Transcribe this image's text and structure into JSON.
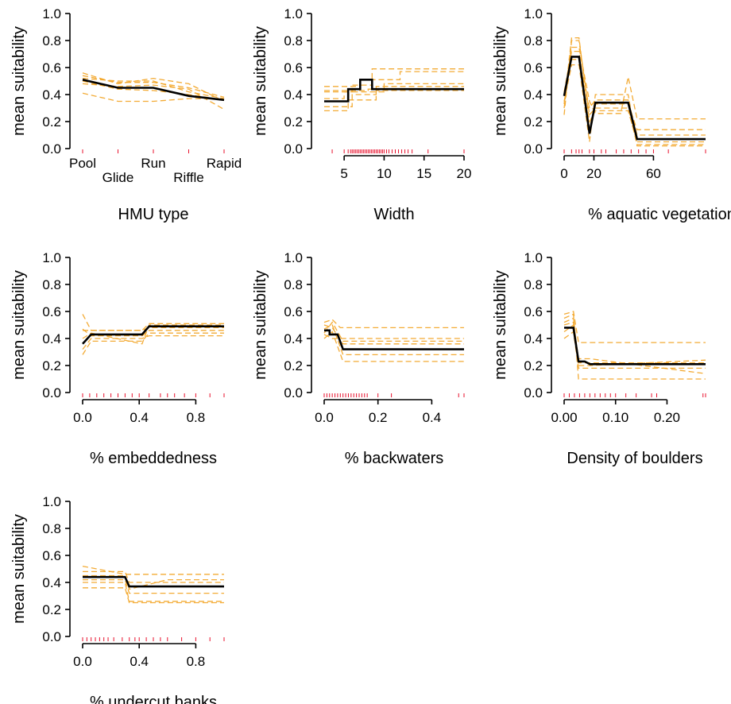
{
  "chart_data": [
    {
      "type": "line",
      "xlabel": "HMU type",
      "ylabel": "mean suitability",
      "ylim": [
        0,
        1
      ],
      "yticks": [
        "0.0",
        "0.2",
        "0.4",
        "0.6",
        "0.8",
        "1.0"
      ],
      "categorical": true,
      "categories": [
        "Pool",
        "Glide",
        "Run",
        "Riffle",
        "Rapid"
      ],
      "xlim": [
        1,
        5
      ],
      "mean": {
        "x": [
          1,
          2,
          3,
          4,
          5
        ],
        "y": [
          0.51,
          0.45,
          0.45,
          0.39,
          0.36
        ]
      },
      "ensemble": [
        [
          0.54,
          0.49,
          0.49,
          0.45,
          0.38
        ],
        [
          0.52,
          0.5,
          0.5,
          0.42,
          0.37
        ],
        [
          0.48,
          0.46,
          0.47,
          0.44,
          0.29
        ],
        [
          0.41,
          0.35,
          0.35,
          0.37,
          0.37
        ],
        [
          0.56,
          0.48,
          0.52,
          0.48,
          0.35
        ],
        [
          0.5,
          0.44,
          0.43,
          0.4,
          0.36
        ]
      ],
      "rug": [
        1,
        2,
        3,
        4,
        5
      ],
      "color_mean": "#000000",
      "color_ensemble": "#f2a62a",
      "color_rug": "#e8112d"
    },
    {
      "type": "line",
      "xlabel": "Width",
      "ylabel": "mean suitability",
      "ylim": [
        0,
        1
      ],
      "yticks": [
        "0.0",
        "0.2",
        "0.4",
        "0.6",
        "0.8",
        "1.0"
      ],
      "xlim": [
        2.5,
        20
      ],
      "xticks": [
        5,
        10,
        15,
        20
      ],
      "xtick_labels": [
        "5",
        "10",
        "15",
        "20"
      ],
      "mean": {
        "x": [
          2.5,
          5.5,
          5.5,
          7,
          7,
          8.5,
          8.5,
          20
        ],
        "y": [
          0.35,
          0.35,
          0.44,
          0.44,
          0.51,
          0.51,
          0.44,
          0.44
        ]
      },
      "ensemble": [
        {
          "x": [
            2.5,
            5.5,
            5.5,
            9,
            9,
            20
          ],
          "y": [
            0.28,
            0.28,
            0.36,
            0.36,
            0.43,
            0.43
          ]
        },
        {
          "x": [
            2.5,
            6,
            6,
            9,
            9,
            20
          ],
          "y": [
            0.31,
            0.31,
            0.4,
            0.4,
            0.46,
            0.46
          ]
        },
        {
          "x": [
            2.5,
            6,
            6,
            8.5,
            8.5,
            20
          ],
          "y": [
            0.42,
            0.42,
            0.47,
            0.47,
            0.59,
            0.59
          ]
        },
        {
          "x": [
            2.5,
            7,
            7,
            12,
            12,
            20
          ],
          "y": [
            0.46,
            0.46,
            0.51,
            0.51,
            0.57,
            0.57
          ]
        },
        {
          "x": [
            2.5,
            5,
            5,
            10,
            10,
            20
          ],
          "y": [
            0.37,
            0.37,
            0.42,
            0.42,
            0.48,
            0.48
          ]
        },
        {
          "x": [
            2.5,
            8,
            8,
            20
          ],
          "y": [
            0.43,
            0.43,
            0.44,
            0.44
          ]
        }
      ],
      "rug": [
        3.5,
        5.0,
        5.5,
        5.8,
        6.0,
        6.2,
        6.4,
        6.6,
        6.8,
        7.0,
        7.2,
        7.4,
        7.6,
        7.8,
        8.0,
        8.2,
        8.4,
        8.6,
        8.8,
        9.0,
        9.2,
        9.4,
        9.6,
        9.8,
        10.0,
        10.3,
        10.6,
        11.0,
        11.4,
        11.8,
        12.2,
        12.6,
        13.0,
        13.5,
        15.5,
        20
      ],
      "color_mean": "#000000",
      "color_ensemble": "#f2a62a",
      "color_rug": "#e8112d"
    },
    {
      "type": "line",
      "xlabel": "% aquatic vegetation",
      "ylabel": "mean suitability",
      "ylim": [
        0,
        1
      ],
      "yticks": [
        "0.0",
        "0.2",
        "0.4",
        "0.6",
        "0.8",
        "1.0"
      ],
      "xlim": [
        0,
        95
      ],
      "xticks": [
        0,
        20,
        60
      ],
      "xtick_labels": [
        "0",
        "20",
        "60"
      ],
      "mean": {
        "x": [
          0,
          5,
          10,
          17,
          21,
          43,
          49,
          95
        ],
        "y": [
          0.39,
          0.68,
          0.68,
          0.11,
          0.34,
          0.34,
          0.07,
          0.07
        ]
      },
      "ensemble": [
        {
          "x": [
            0,
            5,
            10,
            17,
            21,
            43,
            49,
            95
          ],
          "y": [
            0.25,
            0.8,
            0.8,
            0.25,
            0.3,
            0.3,
            0.03,
            0.03
          ]
        },
        {
          "x": [
            0,
            5,
            10,
            17,
            21,
            38,
            43,
            49,
            95
          ],
          "y": [
            0.3,
            0.75,
            0.75,
            0.35,
            0.26,
            0.26,
            0.53,
            0.22,
            0.22
          ]
        },
        {
          "x": [
            0,
            5,
            10,
            17,
            21,
            43,
            49,
            95
          ],
          "y": [
            0.42,
            0.72,
            0.72,
            0.15,
            0.33,
            0.33,
            0.14,
            0.14
          ]
        },
        {
          "x": [
            0,
            5,
            10,
            17,
            21,
            43,
            49,
            95
          ],
          "y": [
            0.35,
            0.62,
            0.62,
            0.05,
            0.4,
            0.4,
            0.02,
            0.02
          ]
        },
        {
          "x": [
            0,
            5,
            10,
            17,
            21,
            43,
            49,
            95
          ],
          "y": [
            0.33,
            0.82,
            0.82,
            0.2,
            0.28,
            0.28,
            0.05,
            0.05
          ]
        },
        {
          "x": [
            0,
            5,
            10,
            17,
            21,
            43,
            49,
            95
          ],
          "y": [
            0.4,
            0.66,
            0.66,
            0.3,
            0.36,
            0.36,
            0.1,
            0.1
          ]
        }
      ],
      "rug": [
        0,
        5,
        8,
        10,
        12,
        17,
        20,
        25,
        28,
        35,
        40,
        45,
        50,
        55,
        60,
        70,
        95
      ],
      "color_mean": "#000000",
      "color_ensemble": "#f2a62a",
      "color_rug": "#e8112d"
    },
    {
      "type": "line",
      "xlabel": "% embeddedness",
      "ylabel": "mean suitability",
      "ylim": [
        0,
        1
      ],
      "yticks": [
        "0.0",
        "0.2",
        "0.4",
        "0.6",
        "0.8",
        "1.0"
      ],
      "xlim": [
        0,
        1
      ],
      "xticks": [
        0,
        0.4,
        0.8
      ],
      "xtick_labels": [
        "0.0",
        "0.4",
        "0.8"
      ],
      "mean": {
        "x": [
          0,
          0.06,
          0.42,
          0.47,
          1
        ],
        "y": [
          0.36,
          0.43,
          0.43,
          0.49,
          0.49
        ]
      },
      "ensemble": [
        {
          "x": [
            0,
            0.06,
            0.42,
            0.47,
            1
          ],
          "y": [
            0.58,
            0.46,
            0.46,
            0.51,
            0.51
          ]
        },
        {
          "x": [
            0,
            0.06,
            0.42,
            0.47,
            1
          ],
          "y": [
            0.28,
            0.38,
            0.38,
            0.44,
            0.44
          ]
        },
        {
          "x": [
            0,
            0.06,
            0.42,
            0.47,
            1
          ],
          "y": [
            0.32,
            0.4,
            0.4,
            0.42,
            0.42
          ]
        },
        {
          "x": [
            0,
            0.06,
            0.42,
            0.47,
            1
          ],
          "y": [
            0.46,
            0.46,
            0.46,
            0.48,
            0.48
          ]
        },
        {
          "x": [
            0,
            0.06,
            0.42,
            0.47,
            1
          ],
          "y": [
            0.4,
            0.44,
            0.36,
            0.5,
            0.5
          ]
        },
        {
          "x": [
            0,
            0.06,
            0.42,
            0.47,
            1
          ],
          "y": [
            0.47,
            0.42,
            0.42,
            0.46,
            0.46
          ]
        }
      ],
      "rug": [
        0,
        0.05,
        0.1,
        0.15,
        0.2,
        0.25,
        0.3,
        0.35,
        0.4,
        0.47,
        0.55,
        0.6,
        0.65,
        0.72,
        0.8,
        0.9,
        1.0
      ],
      "color_mean": "#000000",
      "color_ensemble": "#f2a62a",
      "color_rug": "#e8112d"
    },
    {
      "type": "line",
      "xlabel": "% backwaters",
      "ylabel": "mean suitability",
      "ylim": [
        0,
        1
      ],
      "yticks": [
        "0.0",
        "0.2",
        "0.4",
        "0.6",
        "0.8",
        "1.0"
      ],
      "xlim": [
        0,
        0.52
      ],
      "xticks": [
        0,
        0.2,
        0.4
      ],
      "xtick_labels": [
        "0.0",
        "0.2",
        "0.4"
      ],
      "mean": {
        "x": [
          0,
          0.02,
          0.02,
          0.05,
          0.07,
          0.52
        ],
        "y": [
          0.46,
          0.46,
          0.43,
          0.43,
          0.32,
          0.32
        ]
      },
      "ensemble": [
        {
          "x": [
            0,
            0.03,
            0.06,
            0.52
          ],
          "y": [
            0.52,
            0.54,
            0.48,
            0.48
          ]
        },
        {
          "x": [
            0,
            0.03,
            0.07,
            0.52
          ],
          "y": [
            0.4,
            0.45,
            0.23,
            0.23
          ]
        },
        {
          "x": [
            0,
            0.03,
            0.07,
            0.52
          ],
          "y": [
            0.5,
            0.48,
            0.36,
            0.36
          ]
        },
        {
          "x": [
            0,
            0.03,
            0.07,
            0.52
          ],
          "y": [
            0.43,
            0.4,
            0.4,
            0.4
          ]
        },
        {
          "x": [
            0,
            0.03,
            0.07,
            0.52
          ],
          "y": [
            0.47,
            0.5,
            0.28,
            0.28
          ]
        },
        {
          "x": [
            0,
            0.03,
            0.07,
            0.52
          ],
          "y": [
            0.44,
            0.52,
            0.38,
            0.38
          ]
        }
      ],
      "rug": [
        0.0,
        0.01,
        0.02,
        0.03,
        0.04,
        0.05,
        0.06,
        0.07,
        0.08,
        0.09,
        0.1,
        0.11,
        0.12,
        0.13,
        0.14,
        0.15,
        0.16,
        0.2,
        0.25,
        0.5,
        0.52
      ],
      "color_mean": "#000000",
      "color_ensemble": "#f2a62a",
      "color_rug": "#e8112d"
    },
    {
      "type": "line",
      "xlabel": "Density of boulders",
      "ylabel": "mean suitability",
      "ylim": [
        0,
        1
      ],
      "yticks": [
        "0.0",
        "0.2",
        "0.4",
        "0.6",
        "0.8",
        "1.0"
      ],
      "xlim": [
        0,
        0.275
      ],
      "xticks": [
        0,
        0.1,
        0.2
      ],
      "xtick_labels": [
        "0.00",
        "0.10",
        "0.20"
      ],
      "mean": {
        "x": [
          0,
          0.018,
          0.028,
          0.04,
          0.05,
          0.275
        ],
        "y": [
          0.48,
          0.48,
          0.23,
          0.23,
          0.21,
          0.21
        ]
      },
      "ensemble": [
        {
          "x": [
            0,
            0.018,
            0.028,
            0.04,
            0.275
          ],
          "y": [
            0.58,
            0.6,
            0.37,
            0.37,
            0.37
          ]
        },
        {
          "x": [
            0,
            0.018,
            0.028,
            0.05,
            0.275
          ],
          "y": [
            0.52,
            0.55,
            0.22,
            0.22,
            0.22
          ]
        },
        {
          "x": [
            0,
            0.018,
            0.028,
            0.05,
            0.275
          ],
          "y": [
            0.4,
            0.45,
            0.18,
            0.18,
            0.18
          ]
        },
        {
          "x": [
            0,
            0.018,
            0.028,
            0.05,
            0.275
          ],
          "y": [
            0.55,
            0.58,
            0.1,
            0.1,
            0.1
          ]
        },
        {
          "x": [
            0,
            0.018,
            0.028,
            0.05,
            0.275
          ],
          "y": [
            0.5,
            0.52,
            0.25,
            0.25,
            0.14
          ]
        },
        {
          "x": [
            0,
            0.018,
            0.028,
            0.05,
            0.275
          ],
          "y": [
            0.45,
            0.5,
            0.2,
            0.2,
            0.24
          ]
        }
      ],
      "rug": [
        0,
        0.01,
        0.02,
        0.03,
        0.04,
        0.05,
        0.06,
        0.07,
        0.08,
        0.09,
        0.1,
        0.12,
        0.14,
        0.17,
        0.18,
        0.27,
        0.275
      ],
      "color_mean": "#000000",
      "color_ensemble": "#f2a62a",
      "color_rug": "#e8112d"
    },
    {
      "type": "line",
      "xlabel": "% undercut banks",
      "ylabel": "mean suitability",
      "ylim": [
        0,
        1
      ],
      "yticks": [
        "0.0",
        "0.2",
        "0.4",
        "0.6",
        "0.8",
        "1.0"
      ],
      "xlim": [
        0,
        1
      ],
      "xticks": [
        0,
        0.4,
        0.8
      ],
      "xtick_labels": [
        "0.0",
        "0.4",
        "0.8"
      ],
      "mean": {
        "x": [
          0,
          0.3,
          0.33,
          1
        ],
        "y": [
          0.44,
          0.44,
          0.37,
          0.37
        ]
      },
      "ensemble": [
        {
          "x": [
            0,
            0.3,
            0.33,
            1
          ],
          "y": [
            0.52,
            0.46,
            0.46,
            0.46
          ]
        },
        {
          "x": [
            0,
            0.3,
            0.33,
            1
          ],
          "y": [
            0.48,
            0.48,
            0.4,
            0.4
          ]
        },
        {
          "x": [
            0,
            0.3,
            0.33,
            1
          ],
          "y": [
            0.4,
            0.4,
            0.26,
            0.26
          ]
        },
        {
          "x": [
            0,
            0.3,
            0.33,
            1
          ],
          "y": [
            0.36,
            0.36,
            0.25,
            0.25
          ]
        },
        {
          "x": [
            0,
            0.3,
            0.33,
            0.6,
            1
          ],
          "y": [
            0.45,
            0.45,
            0.35,
            0.42,
            0.42
          ]
        },
        {
          "x": [
            0,
            0.3,
            0.33,
            1
          ],
          "y": [
            0.42,
            0.42,
            0.32,
            0.32
          ]
        }
      ],
      "rug": [
        0,
        0.03,
        0.06,
        0.09,
        0.12,
        0.15,
        0.18,
        0.22,
        0.28,
        0.33,
        0.37,
        0.4,
        0.45,
        0.5,
        0.55,
        0.6,
        0.7,
        0.8,
        0.9,
        1.0
      ],
      "color_mean": "#000000",
      "color_ensemble": "#f2a62a",
      "color_rug": "#e8112d"
    }
  ]
}
